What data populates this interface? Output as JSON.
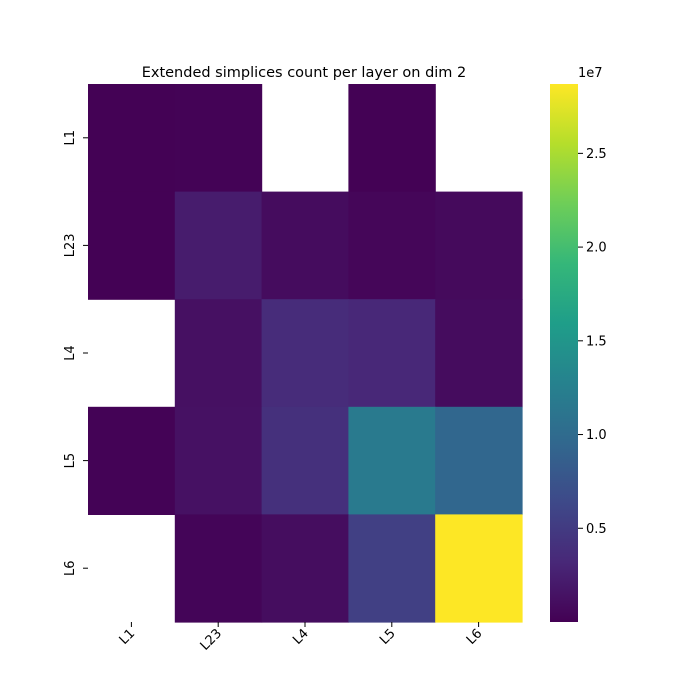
{
  "chart_data": {
    "type": "heatmap",
    "title": "Extended simplices count per layer on dim 2",
    "rows": [
      "L1",
      "L23",
      "L4",
      "L5",
      "L6"
    ],
    "columns": [
      "L1",
      "L23",
      "L4",
      "L5",
      "L6"
    ],
    "values": [
      [
        100000,
        150000,
        null,
        120000,
        null
      ],
      [
        120000,
        2200000,
        900000,
        400000,
        700000
      ],
      [
        null,
        1200000,
        3600000,
        3200000,
        900000
      ],
      [
        150000,
        1300000,
        4000000,
        11800000,
        9500000
      ],
      [
        null,
        350000,
        1000000,
        5500000,
        28700000
      ]
    ],
    "missing_cells": "blank (white)",
    "colormap": "viridis",
    "colorbar": {
      "min": 0,
      "max": 28700000,
      "ticks": [
        0.5,
        1.0,
        1.5,
        2.0,
        2.5
      ],
      "tick_labels": [
        "0.5",
        "1.0",
        "1.5",
        "2.0",
        "2.5"
      ],
      "multiplier_label": "1e7"
    },
    "grid": false
  },
  "colors": {
    "viridis": [
      "#440154",
      "#482878",
      "#3e4989",
      "#31688e",
      "#26828e",
      "#1f9e89",
      "#35b779",
      "#6ece58",
      "#b5de2b",
      "#fde725"
    ]
  }
}
